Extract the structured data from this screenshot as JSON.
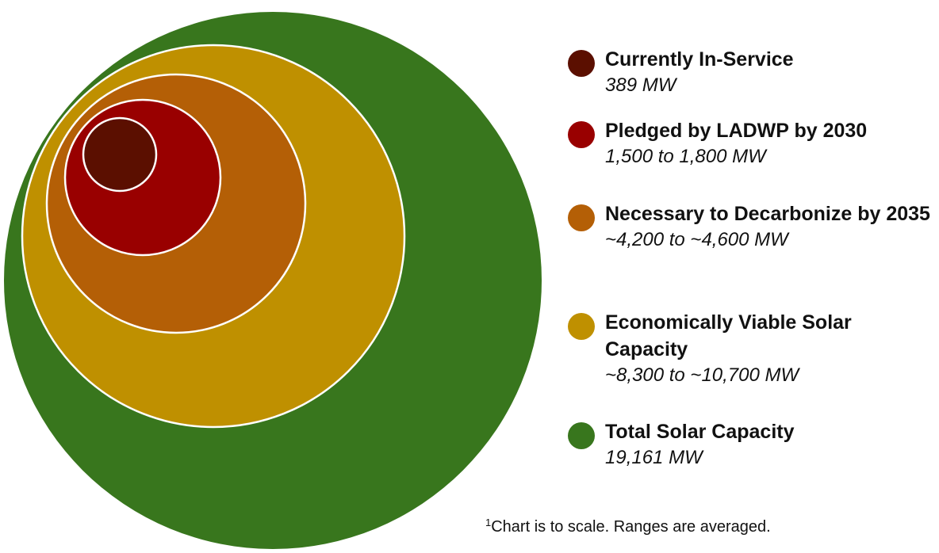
{
  "chart_data": {
    "type": "nested-bubble",
    "series": [
      {
        "name": "Total Solar Capacity",
        "value_label": "19,161 MW",
        "value": 19161,
        "color": "#38761d"
      },
      {
        "name": "Economically Viable Solar Capacity",
        "value_label": "~8,300 to ~10,700 MW",
        "value": 9500,
        "color": "#bf9000"
      },
      {
        "name": "Necessary to Decarbonize by 2035",
        "value_label": "~4,200 to ~4,600 MW",
        "value": 4400,
        "color": "#b45f06"
      },
      {
        "name": "Pledged by LADWP by 2030",
        "value_label": "1,500 to 1,800 MW",
        "value": 1650,
        "color": "#990000"
      },
      {
        "name": "Currently In-Service",
        "value_label": "389 MW",
        "value": 389,
        "color": "#5b0f00"
      }
    ]
  },
  "legend": {
    "items": [
      {
        "label": "Currently In-Service",
        "value": "389 MW",
        "color": "#5b0f00"
      },
      {
        "label": "Pledged by LADWP by 2030",
        "value": "1,500 to 1,800 MW",
        "color": "#990000"
      },
      {
        "label": "Necessary to Decarbonize by 2035",
        "value": "~4,200 to ~4,600 MW",
        "color": "#b45f06"
      },
      {
        "label": "Economically Viable Solar Capacity",
        "value": "~8,300 to ~10,700 MW",
        "color": "#bf9000"
      },
      {
        "label": "Total Solar Capacity",
        "value": "19,161 MW",
        "color": "#38761d"
      }
    ]
  },
  "footnote": {
    "marker": "1",
    "text": "Chart is to scale. Ranges are averaged."
  }
}
